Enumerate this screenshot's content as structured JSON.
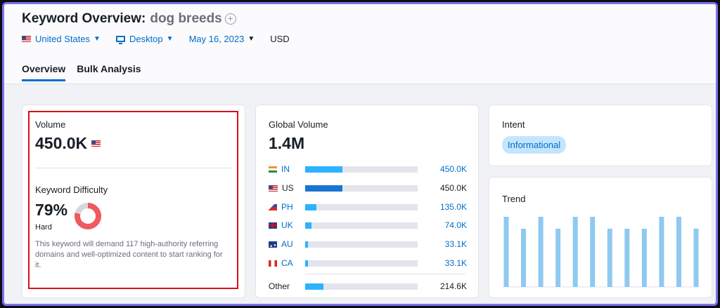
{
  "header": {
    "title": "Keyword Overview:",
    "keyword": "dog breeds",
    "add_icon": "plus-circle-icon",
    "filters": {
      "country": "United States",
      "device": "Desktop",
      "date": "May 16, 2023",
      "currency": "USD"
    },
    "tabs": [
      {
        "label": "Overview",
        "active": true
      },
      {
        "label": "Bulk Analysis",
        "active": false
      }
    ]
  },
  "volume_card": {
    "volume_label": "Volume",
    "volume_value": "450.0K",
    "difficulty_label": "Keyword Difficulty",
    "difficulty_value": "79%",
    "difficulty_percent": 79,
    "difficulty_level": "Hard",
    "description": "This keyword will demand 117 high-authority referring domains and well-optimized content to start ranking for it.",
    "colors": {
      "highlight_border": "#d80f1b",
      "donut_fill": "#ef5a5f",
      "donut_track": "#d6d7dd"
    }
  },
  "global_card": {
    "label": "Global Volume",
    "value": "1.4M",
    "countries": [
      {
        "code": "IN",
        "value": "450.0K",
        "share": 0.33,
        "link": true
      },
      {
        "code": "US",
        "value": "450.0K",
        "share": 0.33,
        "link": false,
        "selected": true
      },
      {
        "code": "PH",
        "value": "135.0K",
        "share": 0.1,
        "link": true
      },
      {
        "code": "UK",
        "value": "74.0K",
        "share": 0.055,
        "link": true
      },
      {
        "code": "AU",
        "value": "33.1K",
        "share": 0.025,
        "link": true
      },
      {
        "code": "CA",
        "value": "33.1K",
        "share": 0.025,
        "link": true
      }
    ],
    "other": {
      "label": "Other",
      "value": "214.6K",
      "share": 0.16
    }
  },
  "intent_card": {
    "label": "Intent",
    "badge": "Informational"
  },
  "trend_card": {
    "label": "Trend",
    "bars": [
      1,
      0.83,
      1,
      0.83,
      1,
      1,
      0.83,
      0.83,
      0.83,
      1,
      1,
      0.83
    ],
    "bar_color": "#8ec9f1"
  }
}
